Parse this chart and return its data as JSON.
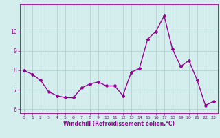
{
  "x": [
    0,
    1,
    2,
    3,
    4,
    5,
    6,
    7,
    8,
    9,
    10,
    11,
    12,
    13,
    14,
    15,
    16,
    17,
    18,
    19,
    20,
    21,
    22,
    23
  ],
  "y": [
    8.0,
    7.8,
    7.5,
    6.9,
    6.7,
    6.6,
    6.6,
    7.1,
    7.3,
    7.4,
    7.2,
    7.2,
    6.7,
    7.9,
    8.1,
    9.6,
    10.0,
    10.8,
    9.1,
    8.2,
    8.5,
    7.5,
    6.2,
    6.4
  ],
  "line_color": "#990099",
  "marker": "D",
  "marker_size": 2,
  "linewidth": 1.0,
  "bg_color": "#d4eeee",
  "grid_color": "#aacccc",
  "xlabel": "Windchill (Refroidissement éolien,°C)",
  "xlabel_color": "#990099",
  "xlim": [
    -0.5,
    23.5
  ],
  "ylim": [
    5.8,
    11.4
  ],
  "yticks": [
    6,
    7,
    8,
    9,
    10
  ],
  "xticks": [
    0,
    1,
    2,
    3,
    4,
    5,
    6,
    7,
    8,
    9,
    10,
    11,
    12,
    13,
    14,
    15,
    16,
    17,
    18,
    19,
    20,
    21,
    22,
    23
  ],
  "tick_color": "#990099",
  "tick_fontsize": 4.5,
  "xlabel_fontsize": 5.5,
  "ytick_fontsize": 5.5
}
